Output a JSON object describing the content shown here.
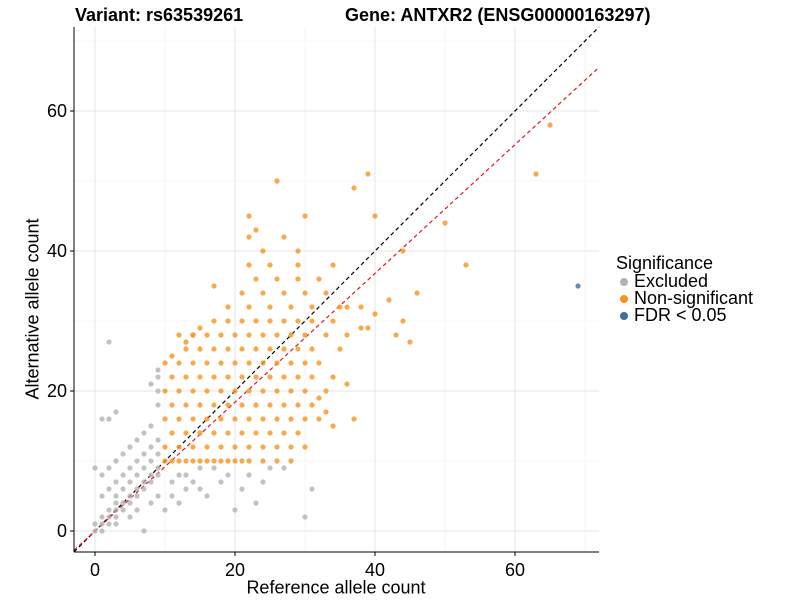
{
  "title_left": "Variant: rs63539261",
  "title_right": "Gene: ANTXR2 (ENSG00000163297)",
  "legend": {
    "title": "Significance",
    "items": [
      {
        "label": "Excluded",
        "color": "#b3b3b3"
      },
      {
        "label": "Non-significant",
        "color": "#f7941d"
      },
      {
        "label": "FDR < 0.05",
        "color": "#3f6fa0"
      }
    ]
  },
  "chart_data": {
    "type": "scatter",
    "xlabel": "Reference allele count",
    "ylabel": "Alternative allele count",
    "xlim": [
      -3,
      72
    ],
    "ylim": [
      -3,
      72
    ],
    "xticks": [
      0,
      20,
      40,
      60
    ],
    "yticks": [
      0,
      20,
      40,
      60
    ],
    "grid": true,
    "legend_position": "right",
    "reference_lines": [
      {
        "slope": 1,
        "intercept": 0,
        "color": "#000000",
        "style": "dashed"
      },
      {
        "slope": 0.92,
        "intercept": 0,
        "color": "#e8141c",
        "style": "dashed"
      }
    ],
    "series": [
      {
        "name": "Excluded",
        "color": "#b3b3b3",
        "points": [
          [
            0,
            0
          ],
          [
            1,
            0
          ],
          [
            0,
            1
          ],
          [
            1,
            1
          ],
          [
            2,
            1
          ],
          [
            1,
            2
          ],
          [
            2,
            2
          ],
          [
            3,
            2
          ],
          [
            2,
            3
          ],
          [
            3,
            3
          ],
          [
            4,
            3
          ],
          [
            3,
            4
          ],
          [
            4,
            4
          ],
          [
            5,
            4
          ],
          [
            1,
            5
          ],
          [
            3,
            5
          ],
          [
            5,
            5
          ],
          [
            6,
            5
          ],
          [
            2,
            6
          ],
          [
            4,
            6
          ],
          [
            6,
            6
          ],
          [
            7,
            6
          ],
          [
            3,
            7
          ],
          [
            5,
            7
          ],
          [
            7,
            7
          ],
          [
            8,
            7
          ],
          [
            1,
            8
          ],
          [
            4,
            8
          ],
          [
            6,
            8
          ],
          [
            8,
            8
          ],
          [
            9,
            8
          ],
          [
            0,
            9
          ],
          [
            2,
            9
          ],
          [
            5,
            9
          ],
          [
            7,
            9
          ],
          [
            9,
            9
          ],
          [
            3,
            10
          ],
          [
            6,
            10
          ],
          [
            8,
            10
          ],
          [
            4,
            11
          ],
          [
            7,
            11
          ],
          [
            9,
            11
          ],
          [
            5,
            12
          ],
          [
            8,
            12
          ],
          [
            6,
            13
          ],
          [
            9,
            13
          ],
          [
            7,
            14
          ],
          [
            8,
            15
          ],
          [
            1,
            16
          ],
          [
            2,
            16
          ],
          [
            3,
            17
          ],
          [
            9,
            18
          ],
          [
            9,
            20
          ],
          [
            8,
            21
          ],
          [
            9,
            22
          ],
          [
            9,
            23
          ],
          [
            2,
            27
          ],
          [
            7,
            0
          ],
          [
            3,
            1
          ],
          [
            5,
            2
          ],
          [
            6,
            3
          ],
          [
            8,
            4
          ],
          [
            9,
            5
          ],
          [
            10,
            3
          ],
          [
            11,
            5
          ],
          [
            12,
            4
          ],
          [
            13,
            6
          ],
          [
            14,
            7
          ],
          [
            12,
            8
          ],
          [
            15,
            6
          ],
          [
            16,
            5
          ],
          [
            18,
            7
          ],
          [
            19,
            8
          ],
          [
            21,
            6
          ],
          [
            22,
            8
          ],
          [
            25,
            9
          ],
          [
            20,
            3
          ],
          [
            23,
            4
          ],
          [
            27,
            9
          ],
          [
            30,
            2
          ],
          [
            31,
            6
          ],
          [
            15,
            9
          ],
          [
            11,
            7
          ],
          [
            13,
            8
          ],
          [
            17,
            9
          ],
          [
            24,
            7
          ]
        ]
      },
      {
        "name": "Non-significant",
        "color": "#f7941d",
        "points": [
          [
            10,
            10
          ],
          [
            11,
            10
          ],
          [
            12,
            10
          ],
          [
            13,
            10
          ],
          [
            14,
            10
          ],
          [
            15,
            10
          ],
          [
            16,
            10
          ],
          [
            17,
            10
          ],
          [
            18,
            10
          ],
          [
            19,
            10
          ],
          [
            20,
            10
          ],
          [
            21,
            10
          ],
          [
            22,
            10
          ],
          [
            24,
            10
          ],
          [
            26,
            10
          ],
          [
            28,
            10
          ],
          [
            10,
            12
          ],
          [
            12,
            12
          ],
          [
            14,
            12
          ],
          [
            16,
            12
          ],
          [
            18,
            12
          ],
          [
            20,
            12
          ],
          [
            22,
            12
          ],
          [
            24,
            12
          ],
          [
            26,
            12
          ],
          [
            28,
            12
          ],
          [
            30,
            12
          ],
          [
            11,
            14
          ],
          [
            13,
            14
          ],
          [
            15,
            14
          ],
          [
            17,
            14
          ],
          [
            19,
            14
          ],
          [
            21,
            14
          ],
          [
            23,
            14
          ],
          [
            25,
            14
          ],
          [
            27,
            14
          ],
          [
            29,
            14
          ],
          [
            10,
            16
          ],
          [
            12,
            16
          ],
          [
            14,
            16
          ],
          [
            16,
            16
          ],
          [
            18,
            16
          ],
          [
            20,
            16
          ],
          [
            22,
            16
          ],
          [
            24,
            16
          ],
          [
            26,
            16
          ],
          [
            28,
            16
          ],
          [
            30,
            16
          ],
          [
            32,
            16
          ],
          [
            11,
            18
          ],
          [
            13,
            18
          ],
          [
            15,
            18
          ],
          [
            17,
            18
          ],
          [
            19,
            18
          ],
          [
            21,
            18
          ],
          [
            23,
            18
          ],
          [
            25,
            18
          ],
          [
            27,
            18
          ],
          [
            29,
            18
          ],
          [
            31,
            18
          ],
          [
            10,
            20
          ],
          [
            12,
            20
          ],
          [
            14,
            20
          ],
          [
            16,
            20
          ],
          [
            18,
            20
          ],
          [
            20,
            20
          ],
          [
            22,
            20
          ],
          [
            24,
            20
          ],
          [
            26,
            20
          ],
          [
            28,
            20
          ],
          [
            30,
            20
          ],
          [
            33,
            20
          ],
          [
            11,
            22
          ],
          [
            13,
            22
          ],
          [
            15,
            22
          ],
          [
            17,
            22
          ],
          [
            19,
            22
          ],
          [
            21,
            22
          ],
          [
            23,
            22
          ],
          [
            25,
            22
          ],
          [
            27,
            22
          ],
          [
            29,
            22
          ],
          [
            31,
            22
          ],
          [
            34,
            22
          ],
          [
            12,
            24
          ],
          [
            14,
            24
          ],
          [
            16,
            24
          ],
          [
            18,
            24
          ],
          [
            20,
            24
          ],
          [
            22,
            24
          ],
          [
            24,
            24
          ],
          [
            26,
            24
          ],
          [
            28,
            24
          ],
          [
            30,
            24
          ],
          [
            32,
            24
          ],
          [
            13,
            26
          ],
          [
            15,
            26
          ],
          [
            17,
            26
          ],
          [
            19,
            26
          ],
          [
            21,
            26
          ],
          [
            23,
            26
          ],
          [
            25,
            26
          ],
          [
            27,
            26
          ],
          [
            29,
            26
          ],
          [
            31,
            26
          ],
          [
            35,
            26
          ],
          [
            12,
            28
          ],
          [
            14,
            28
          ],
          [
            16,
            28
          ],
          [
            18,
            28
          ],
          [
            20,
            28
          ],
          [
            22,
            28
          ],
          [
            24,
            28
          ],
          [
            26,
            28
          ],
          [
            28,
            28
          ],
          [
            30,
            28
          ],
          [
            33,
            28
          ],
          [
            36,
            28
          ],
          [
            17,
            30
          ],
          [
            19,
            30
          ],
          [
            21,
            30
          ],
          [
            23,
            30
          ],
          [
            25,
            30
          ],
          [
            27,
            30
          ],
          [
            29,
            30
          ],
          [
            31,
            30
          ],
          [
            34,
            30
          ],
          [
            19,
            32
          ],
          [
            22,
            32
          ],
          [
            25,
            32
          ],
          [
            28,
            32
          ],
          [
            31,
            32
          ],
          [
            35,
            32
          ],
          [
            38,
            32
          ],
          [
            21,
            34
          ],
          [
            24,
            34
          ],
          [
            27,
            34
          ],
          [
            30,
            34
          ],
          [
            33,
            34
          ],
          [
            17,
            35
          ],
          [
            23,
            36
          ],
          [
            26,
            36
          ],
          [
            29,
            36
          ],
          [
            32,
            36
          ],
          [
            22,
            38
          ],
          [
            25,
            38
          ],
          [
            29,
            38
          ],
          [
            34,
            38
          ],
          [
            24,
            40
          ],
          [
            29,
            40
          ],
          [
            22,
            42
          ],
          [
            27,
            42
          ],
          [
            23,
            43
          ],
          [
            30,
            45
          ],
          [
            22,
            45
          ],
          [
            26,
            50
          ],
          [
            37,
            49
          ],
          [
            39,
            51
          ],
          [
            40,
            45
          ],
          [
            50,
            44
          ],
          [
            53,
            38
          ],
          [
            63,
            51
          ],
          [
            65,
            58
          ],
          [
            44,
            40
          ],
          [
            43,
            28
          ],
          [
            45,
            27
          ],
          [
            38,
            29
          ],
          [
            36,
            32
          ],
          [
            39,
            29
          ],
          [
            40,
            31
          ],
          [
            42,
            33
          ],
          [
            44,
            30
          ],
          [
            46,
            34
          ],
          [
            36,
            21
          ],
          [
            37,
            16
          ],
          [
            34,
            15
          ],
          [
            33,
            17
          ],
          [
            32,
            19
          ],
          [
            15,
            29
          ],
          [
            14,
            28
          ],
          [
            13,
            27
          ],
          [
            11,
            25
          ],
          [
            10,
            24
          ]
        ]
      },
      {
        "name": "FDR < 0.05",
        "color": "#3f6fa0",
        "points": [
          [
            69,
            35
          ]
        ]
      }
    ]
  }
}
